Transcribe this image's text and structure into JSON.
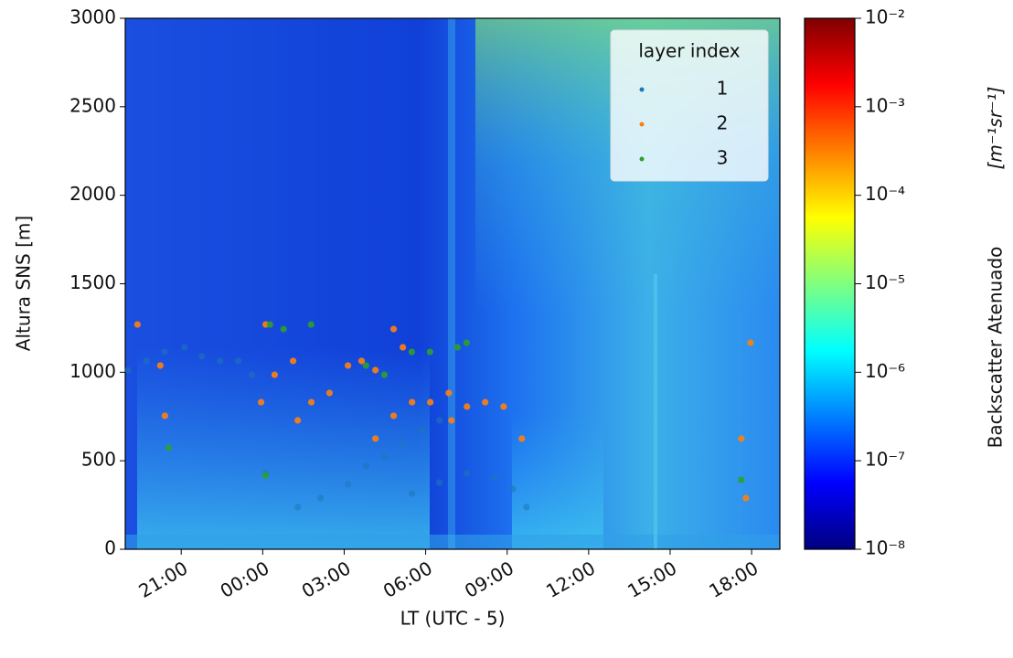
{
  "chart_data": {
    "type": "scatter",
    "xlabel": "LT (UTC - 5)",
    "ylabel": "Altura SNS [m]",
    "xlim": [
      18.94,
      43.04
    ],
    "ylim": [
      0,
      3000
    ],
    "xticks": [
      {
        "value": 21,
        "label": "21:00"
      },
      {
        "value": 24,
        "label": "00:00"
      },
      {
        "value": 27,
        "label": "03:00"
      },
      {
        "value": 30,
        "label": "06:00"
      },
      {
        "value": 33,
        "label": "09:00"
      },
      {
        "value": 36,
        "label": "12:00"
      },
      {
        "value": 39,
        "label": "15:00"
      },
      {
        "value": 42,
        "label": "18:00"
      }
    ],
    "yticks": [
      0,
      500,
      1000,
      1500,
      2000,
      2500,
      3000
    ],
    "legend_title": "layer index",
    "legend": "upper right",
    "series": [
      {
        "name": "1",
        "color": "#1f77b4",
        "x": [
          19.04,
          19.72,
          20.39,
          21.12,
          21.76,
          22.43,
          23.1,
          23.6,
          24.1,
          25.29,
          26.13,
          27.14,
          27.81,
          28.49,
          29.16,
          29.84,
          30.51,
          29.5,
          30.51,
          31.52,
          32.53,
          33.21,
          33.71
        ],
        "y": [
          1012,
          1064,
          1115,
          1141,
          1090,
          1064,
          1064,
          986,
          430,
          238,
          289,
          367,
          470,
          521,
          599,
          676,
          728,
          315,
          377,
          429,
          408,
          341,
          238
        ]
      },
      {
        "name": "2",
        "color": "#ff7f0e",
        "x": [
          19.39,
          20.23,
          20.4,
          24.11,
          23.94,
          24.44,
          25.12,
          25.29,
          25.79,
          26.46,
          27.14,
          27.64,
          28.15,
          28.15,
          28.82,
          29.5,
          28.82,
          29.16,
          30.17,
          30.85,
          30.95,
          31.52,
          32.19,
          32.87,
          33.54,
          41.96,
          41.62,
          41.79
        ],
        "y": [
          1270,
          1038,
          754,
          1270,
          831,
          986,
          1064,
          728,
          831,
          883,
          1038,
          1064,
          1012,
          625,
          754,
          831,
          1244,
          1141,
          831,
          883,
          728,
          806,
          831,
          806,
          625,
          1167,
          625,
          289
        ]
      },
      {
        "name": "3",
        "color": "#2ca02c",
        "x": [
          24.27,
          24.77,
          25.78,
          27.8,
          28.48,
          29.49,
          30.16,
          31.17,
          31.51,
          20.54,
          24.1,
          41.62
        ],
        "y": [
          1270,
          1244,
          1270,
          1038,
          986,
          1115,
          1115,
          1141,
          1167,
          573,
          418,
          392
        ]
      }
    ],
    "colorbar": {
      "label": "Backscatter Atenuado",
      "units": "[m⁻¹sr⁻¹]",
      "scale": "log",
      "colormap": "jet",
      "lim": [
        1e-08,
        0.01
      ],
      "ticks": [
        {
          "value": 1e-08,
          "label": "10⁻⁸"
        },
        {
          "value": 1e-07,
          "label": "10⁻⁷"
        },
        {
          "value": 1e-06,
          "label": "10⁻⁶"
        },
        {
          "value": 1e-05,
          "label": "10⁻⁵"
        },
        {
          "value": 0.0001,
          "label": "10⁻⁴"
        },
        {
          "value": 0.001,
          "label": "10⁻³"
        },
        {
          "value": 0.01,
          "label": "10⁻²"
        }
      ]
    }
  }
}
